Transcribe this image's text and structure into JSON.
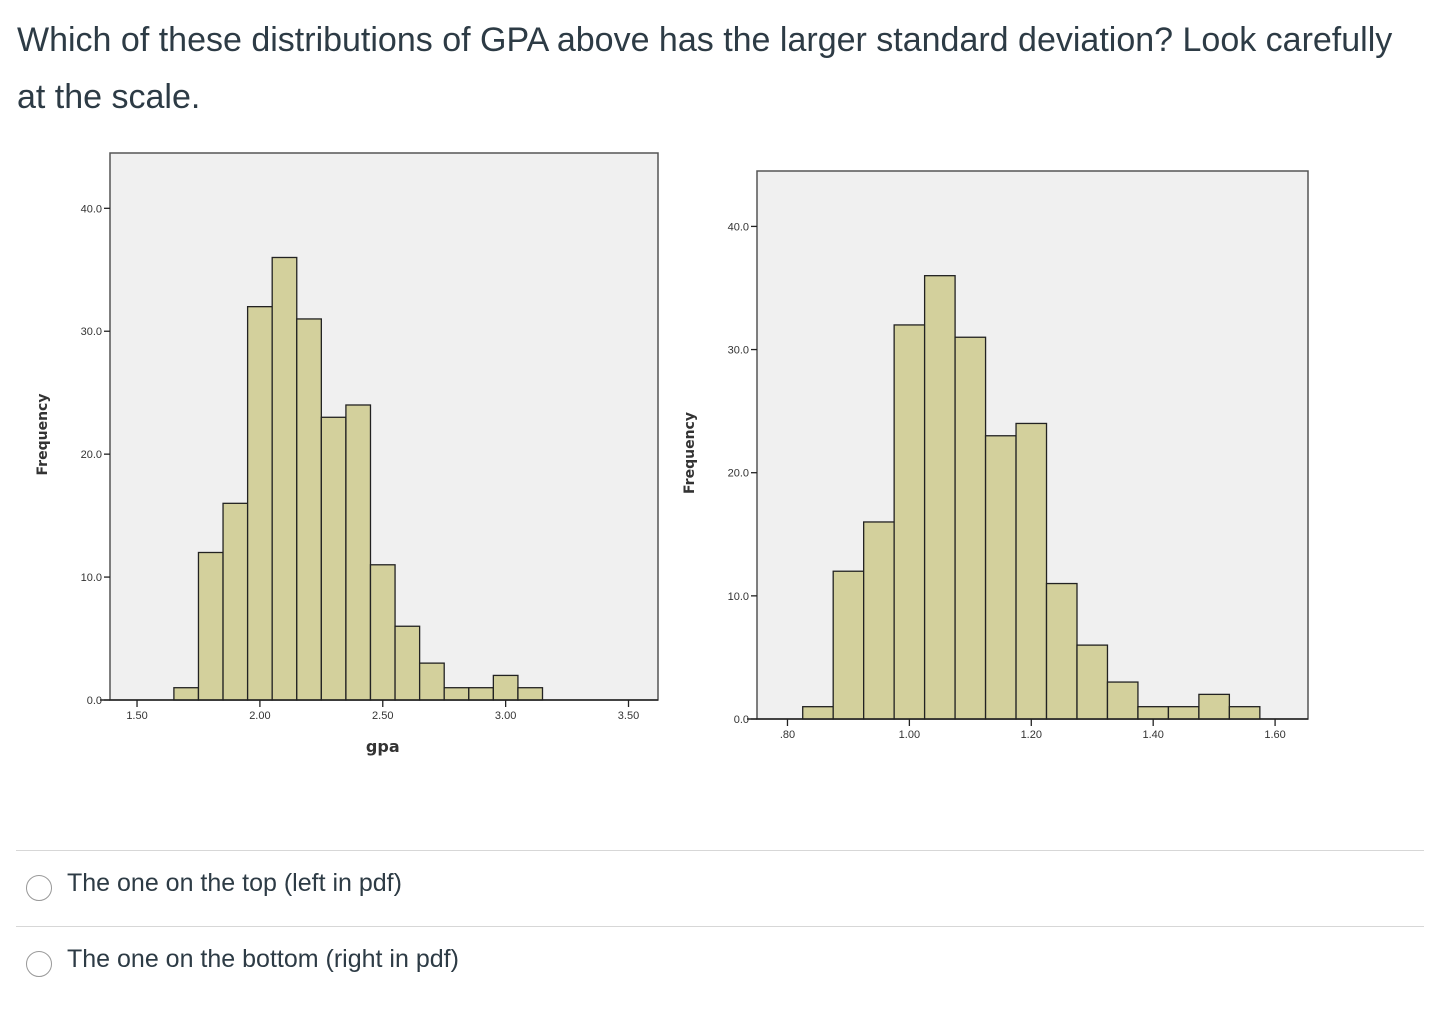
{
  "question": "Which of these distributions of GPA above has the larger standard deviation? Look carefully at the scale.",
  "options": [
    {
      "label": "The one on the top (left in pdf)",
      "selected": false
    },
    {
      "label": "The one on the bottom (right in pdf)",
      "selected": false
    }
  ],
  "colors": {
    "bar": "#d3d09c",
    "plot_bg": "#f0f0f0",
    "edge": "#222222"
  },
  "chart_data": [
    {
      "type": "bar",
      "title": "",
      "xlabel": "gpa",
      "ylabel": "Frequency",
      "bin_width": 0.1,
      "x": [
        1.7,
        1.8,
        1.9,
        2.0,
        2.1,
        2.2,
        2.3,
        2.4,
        2.5,
        2.6,
        2.7,
        2.8,
        2.9,
        3.0,
        3.1
      ],
      "values": [
        1,
        12,
        16,
        32,
        36,
        31,
        23,
        24,
        11,
        6,
        3,
        1,
        1,
        2,
        1
      ],
      "xticks": [
        "1.50",
        "2.00",
        "2.50",
        "3.00",
        "3.50"
      ],
      "xtick_values": [
        1.5,
        2.0,
        2.5,
        3.0,
        3.5
      ],
      "yticks": [
        "0.0",
        "10.0",
        "20.0",
        "30.0",
        "40.0"
      ],
      "ytick_values": [
        0,
        10,
        20,
        30,
        40
      ],
      "xlim": [
        1.39,
        3.62
      ],
      "ylim": [
        0,
        44.5
      ],
      "grid": false
    },
    {
      "type": "bar",
      "title": "",
      "xlabel": "",
      "ylabel": "Frequency",
      "bin_width": 0.05,
      "x": [
        0.85,
        0.9,
        0.95,
        1.0,
        1.05,
        1.1,
        1.15,
        1.2,
        1.25,
        1.3,
        1.35,
        1.4,
        1.45,
        1.5,
        1.55
      ],
      "values": [
        1,
        12,
        16,
        32,
        36,
        31,
        23,
        24,
        11,
        6,
        3,
        1,
        1,
        2,
        1
      ],
      "xticks": [
        ".80",
        "1.00",
        "1.20",
        "1.40",
        "1.60"
      ],
      "xtick_values": [
        0.8,
        1.0,
        1.2,
        1.4,
        1.6
      ],
      "yticks": [
        "0.0",
        "10.0",
        "20.0",
        "30.0",
        "40.0"
      ],
      "ytick_values": [
        0,
        10,
        20,
        30,
        40
      ],
      "xlim": [
        0.75,
        1.654
      ],
      "ylim": [
        0,
        44.5
      ],
      "grid": false
    }
  ]
}
